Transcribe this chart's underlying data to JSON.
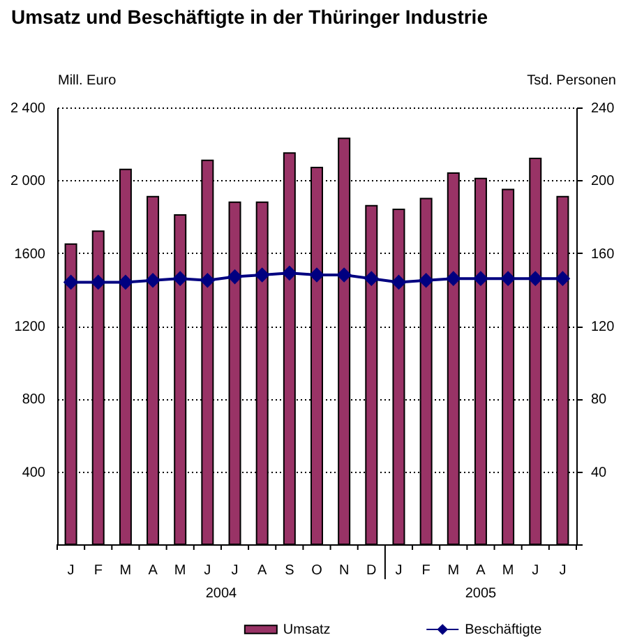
{
  "chart_data": {
    "type": "bar",
    "title": "Umsatz und Beschäftigte in der Thüringer Industrie",
    "ylabel": "Mill. Euro",
    "y2label": "Tsd. Personen",
    "categories": [
      "J",
      "F",
      "M",
      "A",
      "M",
      "J",
      "J",
      "A",
      "S",
      "O",
      "N",
      "D",
      "J",
      "F",
      "M",
      "A",
      "M",
      "J",
      "J"
    ],
    "series": [
      {
        "name": "Umsatz",
        "color": "#993366",
        "values": [
          1650,
          1720,
          2060,
          1910,
          1810,
          2110,
          1880,
          1880,
          2150,
          2070,
          2230,
          1860,
          1840,
          1900,
          2040,
          2010,
          1950,
          2120,
          1910
        ]
      },
      {
        "name": "Beschäftigte",
        "type": "line",
        "axis": "y2",
        "color": "#000080",
        "values": [
          144,
          144,
          144,
          145,
          146,
          145,
          147,
          148,
          149,
          148,
          148,
          146,
          144,
          145,
          146,
          146,
          146,
          146,
          146
        ]
      }
    ],
    "ylim": [
      0,
      2400
    ],
    "yticks": [
      {
        "value": 0,
        "label": null
      },
      400,
      800,
      1200,
      1600,
      {
        "value": 2000,
        "label": "2 000"
      },
      {
        "value": 2400,
        "label": "2 400"
      }
    ],
    "y2lim": [
      0,
      240
    ],
    "y2ticks": [
      {
        "value": 0,
        "label": null
      },
      40,
      80,
      120,
      160,
      200,
      240
    ],
    "annotations": [
      "2004",
      "2005"
    ],
    "grid": "y",
    "legend": "bottom",
    "marker": "diamond"
  }
}
